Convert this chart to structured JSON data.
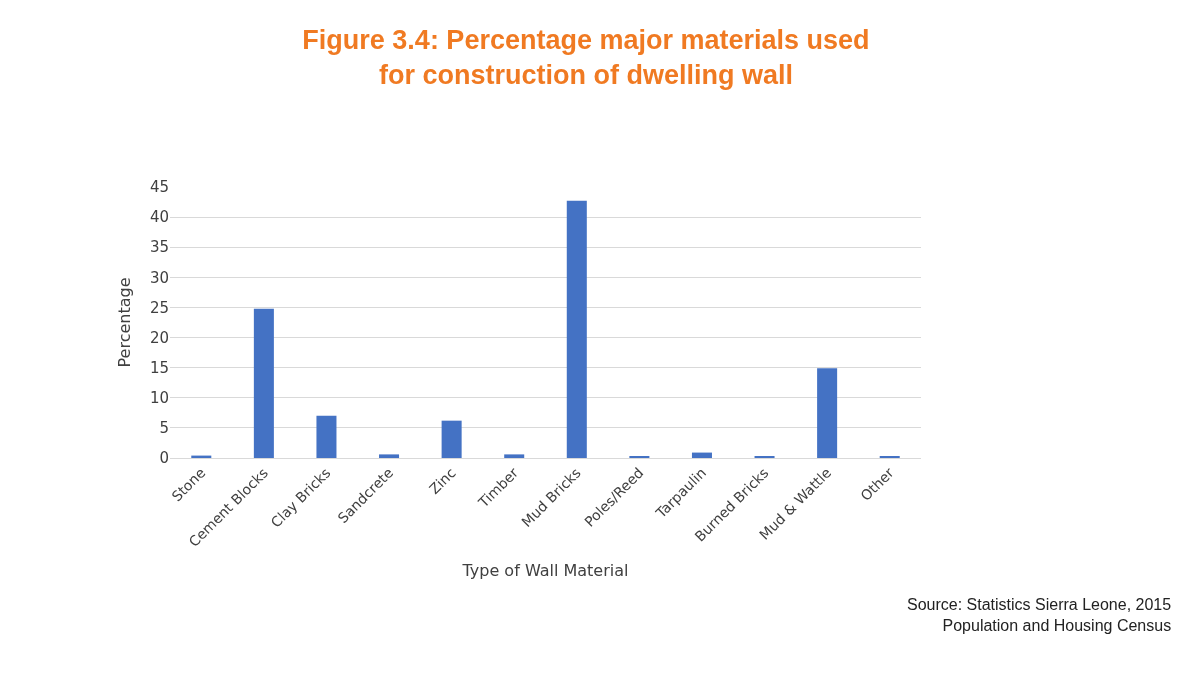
{
  "chart_data": {
    "type": "bar",
    "title": "Figure 3.4: Percentage major materials used\nfor construction of dwelling wall",
    "xlabel": "Type of Wall Material",
    "ylabel": "Percentage",
    "categories": [
      "Stone",
      "Cement Blocks",
      "Clay Bricks",
      "Sandcrete",
      "Zinc",
      "Timber",
      "Mud Bricks",
      "Poles/Reed",
      "Tarpaulin",
      "Burned Bricks",
      "Mud & Wattle",
      "Other"
    ],
    "values": [
      0.4,
      24.8,
      7.0,
      0.6,
      6.2,
      0.6,
      42.7,
      0.3,
      0.9,
      0.3,
      14.9,
      0.3
    ],
    "color": "#4472c4",
    "ylim": [
      0,
      45
    ],
    "yticks": [
      0,
      5,
      10,
      15,
      20,
      25,
      30,
      35,
      40,
      45
    ],
    "grid": "y",
    "annotations": [
      "Source: Statistics Sierra Leone, 2015\nPopulation and Housing Census"
    ]
  }
}
